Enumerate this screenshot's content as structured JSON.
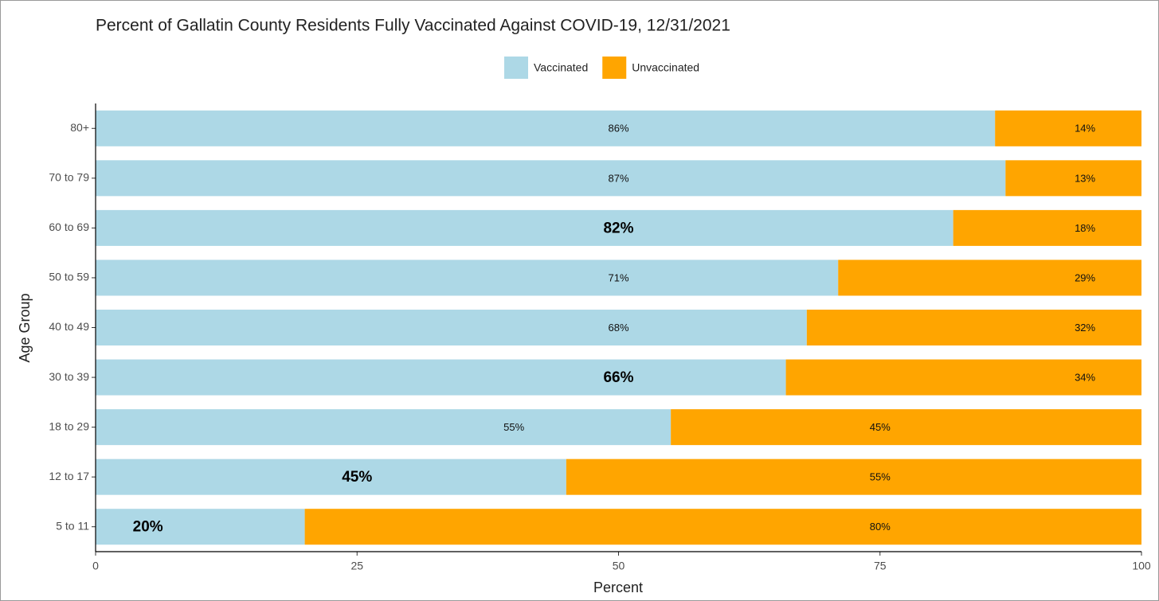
{
  "chart_data": {
    "type": "stacked_bar_horizontal",
    "title": "Percent of Gallatin County Residents Fully Vaccinated Against COVID-19, 12/31/2021",
    "x_label": "Percent",
    "y_label": "Age Group",
    "categories": [
      "80+",
      "70 to 79",
      "60 to 69",
      "50 to 59",
      "40 to 49",
      "30 to 39",
      "18 to 29",
      "12 to 17",
      "5 to 11"
    ],
    "series": [
      {
        "name": "Vaccinated",
        "color": "#add8e6",
        "values": [
          86,
          87,
          82,
          71,
          68,
          66,
          55,
          45,
          20
        ],
        "value_labels": [
          "86%",
          "87%",
          "82%",
          "71%",
          "68%",
          "66%",
          "55%",
          "45%",
          "20%"
        ]
      },
      {
        "name": "Unvaccinated",
        "color": "#ffa500",
        "values": [
          14,
          13,
          18,
          29,
          32,
          34,
          45,
          55,
          80
        ],
        "value_labels": [
          "14%",
          "13%",
          "18%",
          "29%",
          "32%",
          "34%",
          "45%",
          "55%",
          "80%"
        ]
      }
    ],
    "xlim": [
      0,
      100
    ],
    "xticks": [
      0,
      25,
      50,
      75,
      100
    ],
    "legend": "top"
  }
}
